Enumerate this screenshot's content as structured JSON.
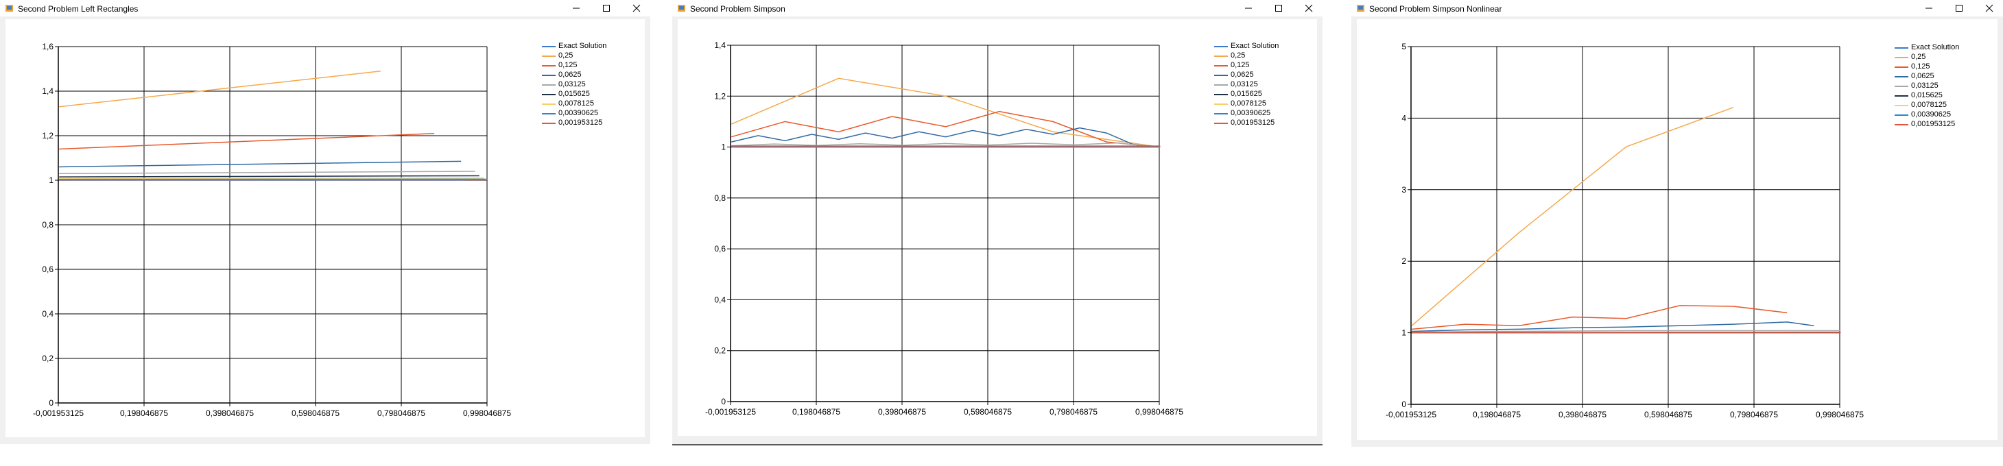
{
  "windows": [
    {
      "title": "Second Problem Left Rectangles",
      "legend": [
        "Exact Solution",
        "0,25",
        "0,125",
        "0,0625",
        "0,03125",
        "0,015625",
        "0,0078125",
        "0,00390625",
        "0,001953125"
      ],
      "chart_data": {
        "type": "line",
        "title": "",
        "xlim": [
          -0.001953125,
          0.998046875
        ],
        "ylim": [
          0,
          1.6
        ],
        "x_ticks": [
          "-0,001953125",
          "0,198046875",
          "0,398046875",
          "0,598046875",
          "0,798046875",
          "0,998046875"
        ],
        "y_ticks": [
          "0",
          "0,2",
          "0,4",
          "0,6",
          "0,8",
          "1",
          "1,2",
          "1,4",
          "1,6"
        ],
        "grid": true,
        "legend_position": "top-right",
        "series": [
          {
            "name": "Exact Solution",
            "color": "#3a7ac8",
            "x": [
              0.0,
              0.95
            ],
            "y": [
              1.0,
              1.0
            ]
          },
          {
            "name": "0,25",
            "color": "#f5a94d",
            "x": [
              0.0,
              0.75
            ],
            "y": [
              1.33,
              1.49
            ]
          },
          {
            "name": "0,125",
            "color": "#e8592b",
            "x": [
              0.0,
              0.875
            ],
            "y": [
              1.14,
              1.21
            ]
          },
          {
            "name": "0,0625",
            "color": "#2f6aa3",
            "x": [
              0.0,
              0.9375
            ],
            "y": [
              1.06,
              1.085
            ]
          },
          {
            "name": "0,03125",
            "color": "#a8a8a8",
            "x": [
              0.0,
              0.97
            ],
            "y": [
              1.03,
              1.04
            ]
          },
          {
            "name": "0,015625",
            "color": "#1f2f4a",
            "x": [
              0.0,
              0.98
            ],
            "y": [
              1.015,
              1.02
            ]
          },
          {
            "name": "0,0078125",
            "color": "#f7d06a",
            "x": [
              0.0,
              0.99
            ],
            "y": [
              1.008,
              1.01
            ]
          },
          {
            "name": "0,00390625",
            "color": "#2b86c6",
            "x": [
              0.0,
              0.995
            ],
            "y": [
              1.004,
              1.005
            ]
          },
          {
            "name": "0,001953125",
            "color": "#e0583c",
            "x": [
              0.0,
              0.998
            ],
            "y": [
              1.002,
              1.002
            ]
          }
        ]
      }
    },
    {
      "title": "Second Problem Simpson",
      "legend": [
        "Exact Solution",
        "0,25",
        "0,125",
        "0,0625",
        "0,03125",
        "0,015625",
        "0,0078125",
        "0,00390625",
        "0,001953125"
      ],
      "chart_data": {
        "type": "line",
        "title": "",
        "xlim": [
          -0.001953125,
          0.998046875
        ],
        "ylim": [
          0,
          1.4
        ],
        "x_ticks": [
          "-0,001953125",
          "0,198046875",
          "0,398046875",
          "0,598046875",
          "0,798046875",
          "0,998046875"
        ],
        "y_ticks": [
          "0",
          "0,2",
          "0,4",
          "0,6",
          "0,8",
          "1",
          "1,2",
          "1,4"
        ],
        "grid": true,
        "legend_position": "top-right",
        "series": [
          {
            "name": "Exact Solution",
            "color": "#3a7ac8",
            "x": [
              0.0,
              1.0
            ],
            "y": [
              1.0,
              1.0
            ]
          },
          {
            "name": "0,25",
            "color": "#f5a94d",
            "x": [
              0.0,
              0.25,
              0.5,
              0.75,
              1.0
            ],
            "y": [
              1.09,
              1.27,
              1.2,
              1.06,
              1.0
            ]
          },
          {
            "name": "0,125",
            "color": "#e8592b",
            "x": [
              0.0,
              0.125,
              0.25,
              0.375,
              0.5,
              0.625,
              0.75,
              0.875,
              1.0
            ],
            "y": [
              1.04,
              1.1,
              1.06,
              1.12,
              1.08,
              1.14,
              1.1,
              1.02,
              1.0
            ]
          },
          {
            "name": "0,0625",
            "color": "#2f6aa3",
            "x": [
              0.0,
              0.0625,
              0.125,
              0.1875,
              0.25,
              0.3125,
              0.375,
              0.4375,
              0.5,
              0.5625,
              0.625,
              0.6875,
              0.75,
              0.8125,
              0.875,
              0.9375,
              1.0
            ],
            "y": [
              1.02,
              1.045,
              1.025,
              1.05,
              1.03,
              1.055,
              1.035,
              1.06,
              1.04,
              1.065,
              1.045,
              1.07,
              1.05,
              1.075,
              1.055,
              1.01,
              1.0
            ]
          },
          {
            "name": "0,03125",
            "color": "#a8a8a8",
            "x": [
              0.0,
              0.1,
              0.2,
              0.3,
              0.4,
              0.5,
              0.6,
              0.7,
              0.8,
              0.9,
              1.0
            ],
            "y": [
              1.005,
              1.012,
              1.006,
              1.013,
              1.007,
              1.014,
              1.008,
              1.015,
              1.009,
              1.016,
              1.0
            ]
          },
          {
            "name": "0,015625",
            "color": "#1f2f4a",
            "x": [
              0.0,
              1.0
            ],
            "y": [
              1.004,
              1.004
            ]
          },
          {
            "name": "0,0078125",
            "color": "#f7d06a",
            "x": [
              0.0,
              1.0
            ],
            "y": [
              1.003,
              1.003
            ]
          },
          {
            "name": "0,00390625",
            "color": "#2b86c6",
            "x": [
              0.0,
              1.0
            ],
            "y": [
              1.002,
              1.002
            ]
          },
          {
            "name": "0,001953125",
            "color": "#e0583c",
            "x": [
              0.0,
              1.0
            ],
            "y": [
              1.001,
              1.001
            ]
          }
        ]
      }
    },
    {
      "title": "Second Problem Simpson Nonlinear",
      "legend": [
        "Exact Solution",
        "0,25",
        "0,125",
        "0,0625",
        "0,03125",
        "0,015625",
        "0,0078125",
        "0,00390625",
        "0,001953125"
      ],
      "chart_data": {
        "type": "line",
        "title": "",
        "xlim": [
          -0.001953125,
          0.998046875
        ],
        "ylim": [
          0,
          5
        ],
        "x_ticks": [
          "-0,001953125",
          "0,198046875",
          "0,398046875",
          "0,598046875",
          "0,798046875",
          "0,998046875"
        ],
        "y_ticks": [
          "0",
          "1",
          "2",
          "3",
          "4",
          "5"
        ],
        "grid": true,
        "legend_position": "top-right",
        "series": [
          {
            "name": "Exact Solution",
            "color": "#3a7ac8",
            "x": [
              0.0,
              1.0
            ],
            "y": [
              1.0,
              1.0
            ]
          },
          {
            "name": "0,25",
            "color": "#f5a94d",
            "x": [
              0.0,
              0.25,
              0.5,
              0.75
            ],
            "y": [
              1.1,
              2.4,
              3.6,
              4.15
            ]
          },
          {
            "name": "0,125",
            "color": "#e8592b",
            "x": [
              0.0,
              0.125,
              0.25,
              0.375,
              0.5,
              0.625,
              0.75,
              0.875
            ],
            "y": [
              1.05,
              1.12,
              1.1,
              1.22,
              1.2,
              1.38,
              1.37,
              1.28
            ]
          },
          {
            "name": "0,0625",
            "color": "#2f6aa3",
            "x": [
              0.0,
              0.125,
              0.25,
              0.375,
              0.5,
              0.625,
              0.75,
              0.875,
              0.9375
            ],
            "y": [
              1.02,
              1.04,
              1.05,
              1.07,
              1.08,
              1.1,
              1.12,
              1.15,
              1.1
            ]
          },
          {
            "name": "0,03125",
            "color": "#a8a8a8",
            "x": [
              0.0,
              0.25,
              0.5,
              0.75,
              1.0
            ],
            "y": [
              1.01,
              1.02,
              1.03,
              1.03,
              1.03
            ]
          },
          {
            "name": "0,015625",
            "color": "#1f2f4a",
            "x": [
              0.0,
              1.0
            ],
            "y": [
              1.005,
              1.008
            ]
          },
          {
            "name": "0,0078125",
            "color": "#f7d06a",
            "x": [
              0.0,
              1.0
            ],
            "y": [
              1.003,
              1.004
            ]
          },
          {
            "name": "0,00390625",
            "color": "#2b86c6",
            "x": [
              0.0,
              1.0
            ],
            "y": [
              1.002,
              1.002
            ]
          },
          {
            "name": "0,001953125",
            "color": "#e0583c",
            "x": [
              0.0,
              1.0
            ],
            "y": [
              1.001,
              1.001
            ]
          }
        ]
      }
    }
  ]
}
